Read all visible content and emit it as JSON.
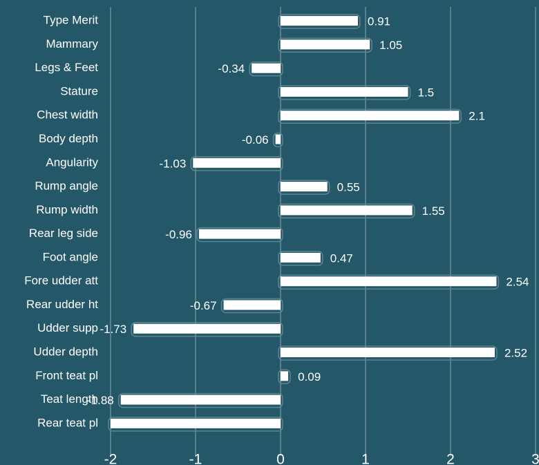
{
  "chart_data": {
    "type": "bar",
    "orientation": "horizontal",
    "categories": [
      "Type Merit",
      "Mammary",
      "Legs & Feet",
      "Stature",
      "Chest width",
      "Body depth",
      "Angularity",
      "Rump angle",
      "Rump width",
      "Rear leg side",
      "Foot angle",
      "Fore udder att",
      "Rear udder ht",
      "Udder supp",
      "Udder depth",
      "Front teat pl",
      "Teat length",
      "Rear teat pl"
    ],
    "values": [
      0.91,
      1.05,
      -0.34,
      1.5,
      2.1,
      -0.06,
      -1.03,
      0.55,
      1.55,
      -0.96,
      0.47,
      2.54,
      -0.67,
      -1.73,
      2.52,
      0.09,
      -1.88,
      -2.0
    ],
    "value_labels": [
      "0.91",
      "1.05",
      "-0.34",
      "1.5",
      "2.1",
      "-0.06",
      "-1.03",
      "0.55",
      "1.55",
      "-0.96",
      "0.47",
      "2.54",
      "-0.67",
      "-1.73",
      "2.52",
      "0.09",
      "-1.88",
      null
    ],
    "color": "#ffffff",
    "xlim": [
      -2,
      3
    ],
    "xticks": [
      -2,
      -1,
      0,
      1,
      2,
      3
    ],
    "grid": true
  }
}
